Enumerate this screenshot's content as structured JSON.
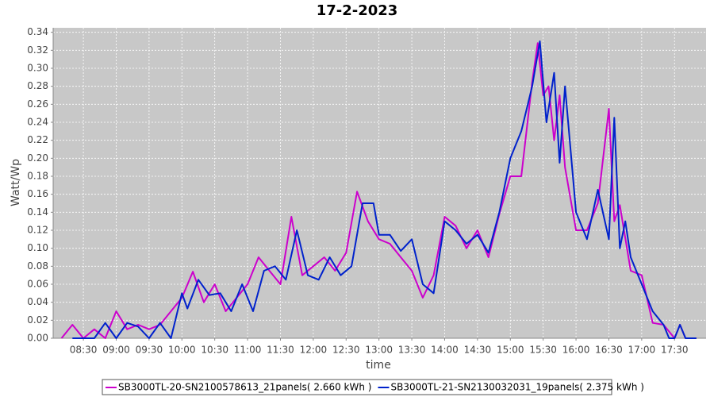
{
  "chart_data": {
    "type": "line",
    "title": "17-2-2023",
    "x_label": "time",
    "y_label": "Watt/Wp",
    "xlim": [
      8.04,
      17.98
    ],
    "ylim": [
      0,
      0.345
    ],
    "xticks": [
      {
        "value": 8.5,
        "label": "08:30"
      },
      {
        "value": 9,
        "label": "09:00"
      },
      {
        "value": 9.5,
        "label": "09:30"
      },
      {
        "value": 10,
        "label": "10:00"
      },
      {
        "value": 10.5,
        "label": "10:30"
      },
      {
        "value": 11,
        "label": "11:00"
      },
      {
        "value": 11.5,
        "label": "11:30"
      },
      {
        "value": 12,
        "label": "12:00"
      },
      {
        "value": 12.5,
        "label": "12:30"
      },
      {
        "value": 13,
        "label": "13:00"
      },
      {
        "value": 13.5,
        "label": "13:30"
      },
      {
        "value": 14,
        "label": "14:00"
      },
      {
        "value": 14.5,
        "label": "14:30"
      },
      {
        "value": 15,
        "label": "15:00"
      },
      {
        "value": 15.5,
        "label": "15:30"
      },
      {
        "value": 16,
        "label": "16:00"
      },
      {
        "value": 16.5,
        "label": "16:30"
      },
      {
        "value": 17,
        "label": "17:00"
      },
      {
        "value": 17.5,
        "label": "17:30"
      }
    ],
    "yticks": [
      {
        "value": 0,
        "label": "0.00"
      },
      {
        "value": 0.02,
        "label": "0.02"
      },
      {
        "value": 0.04,
        "label": "0.04"
      },
      {
        "value": 0.06,
        "label": "0.06"
      },
      {
        "value": 0.08,
        "label": "0.08"
      },
      {
        "value": 0.1,
        "label": "0.10"
      },
      {
        "value": 0.12,
        "label": "0.12"
      },
      {
        "value": 0.14,
        "label": "0.14"
      },
      {
        "value": 0.16,
        "label": "0.16"
      },
      {
        "value": 0.18,
        "label": "0.18"
      },
      {
        "value": 0.2,
        "label": "0.20"
      },
      {
        "value": 0.22,
        "label": "0.22"
      },
      {
        "value": 0.24,
        "label": "0.24"
      },
      {
        "value": 0.26,
        "label": "0.26"
      },
      {
        "value": 0.28,
        "label": "0.28"
      },
      {
        "value": 0.3,
        "label": "0.30"
      },
      {
        "value": 0.32,
        "label": "0.32"
      },
      {
        "value": 0.34,
        "label": "0.34"
      }
    ],
    "grid": true,
    "series": [
      {
        "name": "SB3000TL-20-SN2100578613_21panels( 2.660 kWh )",
        "color": "#cc00cc",
        "x": [
          8.167,
          8.333,
          8.5,
          8.667,
          8.833,
          9.0,
          9.167,
          9.333,
          9.5,
          9.667,
          9.833,
          10.0,
          10.167,
          10.333,
          10.5,
          10.667,
          10.833,
          11.0,
          11.167,
          11.333,
          11.5,
          11.667,
          11.833,
          12.0,
          12.167,
          12.333,
          12.5,
          12.667,
          12.833,
          13.0,
          13.167,
          13.333,
          13.5,
          13.667,
          13.833,
          14.0,
          14.167,
          14.333,
          14.5,
          14.667,
          14.833,
          15.0,
          15.167,
          15.333,
          15.417,
          15.5,
          15.583,
          15.667,
          15.75,
          15.833,
          16.0,
          16.167,
          16.333,
          16.5,
          16.583,
          16.667,
          16.833,
          17.0,
          17.167,
          17.333,
          17.5,
          17.583,
          17.667,
          17.833
        ],
        "values": [
          0,
          0.015,
          0,
          0.01,
          0,
          0.03,
          0.01,
          0.015,
          0.01,
          0.015,
          0.03,
          0.045,
          0.074,
          0.04,
          0.06,
          0.03,
          0.045,
          0.06,
          0.09,
          0.075,
          0.06,
          0.135,
          0.07,
          0.08,
          0.09,
          0.075,
          0.095,
          0.163,
          0.13,
          0.11,
          0.105,
          0.09,
          0.075,
          0.045,
          0.07,
          0.135,
          0.125,
          0.1,
          0.12,
          0.09,
          0.138,
          0.18,
          0.18,
          0.285,
          0.328,
          0.27,
          0.28,
          0.22,
          0.27,
          0.19,
          0.12,
          0.12,
          0.15,
          0.255,
          0.13,
          0.148,
          0.075,
          0.07,
          0.017,
          0.015,
          0,
          0.015,
          0,
          0
        ]
      },
      {
        "name": "SB3000TL-21-SN2130032031_19panels( 2.375 kWh )",
        "color": "#0022cc",
        "x": [
          8.333,
          8.5,
          8.667,
          8.833,
          9.0,
          9.167,
          9.333,
          9.5,
          9.667,
          9.833,
          10.0,
          10.083,
          10.25,
          10.417,
          10.583,
          10.75,
          10.917,
          11.083,
          11.25,
          11.417,
          11.583,
          11.75,
          11.917,
          12.083,
          12.25,
          12.417,
          12.583,
          12.75,
          12.917,
          13.0,
          13.167,
          13.333,
          13.5,
          13.667,
          13.833,
          14.0,
          14.167,
          14.333,
          14.5,
          14.667,
          14.833,
          15.0,
          15.167,
          15.333,
          15.45,
          15.55,
          15.667,
          15.75,
          15.833,
          16.0,
          16.167,
          16.333,
          16.5,
          16.583,
          16.667,
          16.75,
          16.833,
          17.0,
          17.167,
          17.333,
          17.417,
          17.5,
          17.583,
          17.667,
          17.833
        ],
        "values": [
          0,
          0,
          0,
          0.017,
          0,
          0.017,
          0.013,
          0,
          0.017,
          0,
          0.05,
          0.033,
          0.065,
          0.048,
          0.05,
          0.03,
          0.06,
          0.03,
          0.075,
          0.08,
          0.065,
          0.12,
          0.07,
          0.065,
          0.09,
          0.07,
          0.08,
          0.15,
          0.15,
          0.115,
          0.115,
          0.097,
          0.11,
          0.06,
          0.05,
          0.13,
          0.12,
          0.105,
          0.115,
          0.095,
          0.14,
          0.2,
          0.23,
          0.28,
          0.33,
          0.24,
          0.295,
          0.195,
          0.28,
          0.14,
          0.11,
          0.165,
          0.11,
          0.245,
          0.1,
          0.13,
          0.09,
          0.06,
          0.03,
          0.015,
          0,
          0,
          0.015,
          0,
          0
        ]
      }
    ]
  }
}
